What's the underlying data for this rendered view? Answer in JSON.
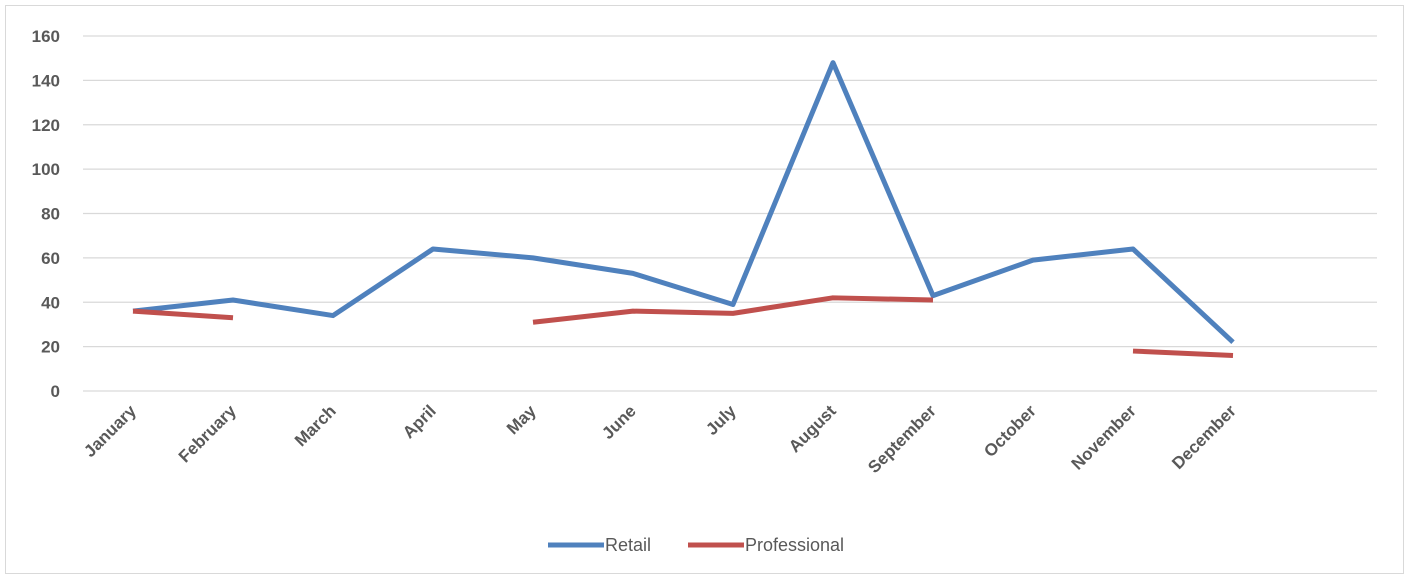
{
  "chart_data": {
    "type": "line",
    "title": "",
    "xlabel": "",
    "ylabel": "",
    "categories": [
      "January",
      "February",
      "March",
      "April",
      "May",
      "June",
      "July",
      "August",
      "September",
      "October",
      "November",
      "December"
    ],
    "ylim": [
      0,
      160
    ],
    "yticks": [
      "0",
      "20",
      "40",
      "60",
      "80",
      "100",
      "120",
      "140",
      "160"
    ],
    "grid": true,
    "legend_position": "bottom",
    "series": [
      {
        "name": "Retail",
        "color": "#4f81bd",
        "values": [
          36,
          41,
          34,
          64,
          60,
          53,
          39,
          148,
          43,
          59,
          64,
          22
        ]
      },
      {
        "name": "Professional",
        "color": "#c0504d",
        "values": [
          36,
          33,
          null,
          null,
          31,
          36,
          35,
          42,
          41,
          null,
          18,
          16
        ]
      }
    ]
  }
}
